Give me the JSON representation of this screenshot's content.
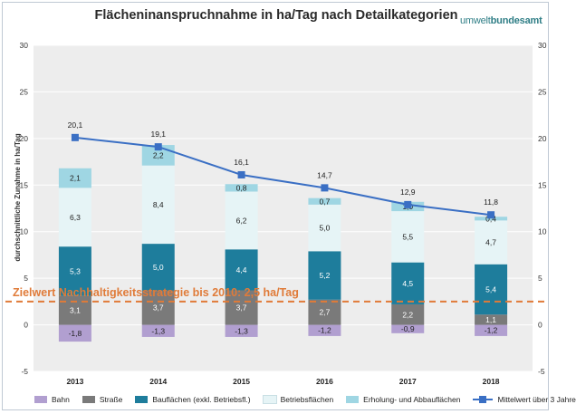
{
  "header": {
    "title": "Flächeninanspruchnahme  in ha/Tag nach Detailkategorien",
    "brand_a": "umwelt",
    "brand_b": "bundesamt"
  },
  "chart_data": {
    "type": "bar",
    "stacked": true,
    "title": "Flächeninanspruchnahme  in ha/Tag nach Detailkategorien",
    "ylabel": "durchschnittliche Zunahme in ha/Tag",
    "ylim": [
      -5,
      30
    ],
    "yticks": [
      -5,
      0,
      5,
      10,
      15,
      20,
      25,
      30
    ],
    "grid": true,
    "legend_position": "bottom",
    "categories": [
      "2013",
      "2014",
      "2015",
      "2016",
      "2017",
      "2018"
    ],
    "series": [
      {
        "name": "Bahn",
        "color": "#b19fd0",
        "values": [
          -1.8,
          -1.3,
          -1.3,
          -1.2,
          -0.9,
          -1.2
        ],
        "labels": [
          "-1,8",
          "-1,3",
          "-1,3",
          "-1,2",
          "-0,9",
          "-1,2"
        ]
      },
      {
        "name": "Straße",
        "color": "#7a7a7a",
        "values": [
          3.1,
          3.7,
          3.7,
          2.7,
          2.2,
          1.1
        ],
        "labels": [
          "3,1",
          "3,7",
          "3,7",
          "2,7",
          "2,2",
          "1,1"
        ]
      },
      {
        "name": "Bauflächen (exkl. Betriebsfl.)",
        "color": "#1e7d9c",
        "values": [
          5.3,
          5.0,
          4.4,
          5.2,
          4.5,
          5.4
        ],
        "labels": [
          "5,3",
          "5,0",
          "4,4",
          "5,2",
          "4,5",
          "5,4"
        ]
      },
      {
        "name": "Betriebsflächen",
        "color": "#e6f4f6",
        "values": [
          6.3,
          8.4,
          6.2,
          5.0,
          5.5,
          4.7
        ],
        "labels": [
          "6,3",
          "8,4",
          "6,2",
          "5,0",
          "5,5",
          "4,7"
        ]
      },
      {
        "name": "Erholung- und Abbauflächen",
        "color": "#9fd6e3",
        "values": [
          2.1,
          2.2,
          0.8,
          0.7,
          1.0,
          0.4
        ],
        "labels": [
          "2,1",
          "2,2",
          "0,8",
          "0,7",
          "1,0",
          "0,4"
        ]
      }
    ],
    "line_series": {
      "name": "Mittelwert über 3 Jahre",
      "color": "#3a6fc4",
      "values": [
        20.1,
        19.1,
        16.1,
        14.7,
        12.9,
        11.8
      ],
      "labels": [
        "20,1",
        "19,1",
        "16,1",
        "14,7",
        "12,9",
        "11,8"
      ]
    },
    "target_line": {
      "value": 2.5,
      "label": "Zielwert Nachhaltigkeitsstrategie bis 2010: 2,5 ha/Tag",
      "color": "#e07b39"
    }
  }
}
